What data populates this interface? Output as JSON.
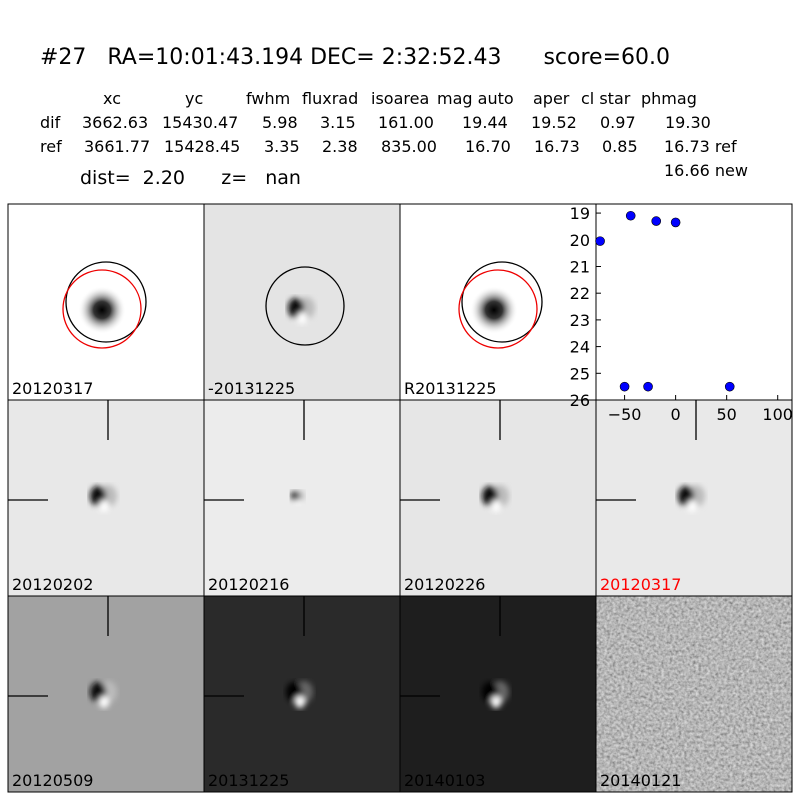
{
  "header": {
    "title": "#27   RA=10:01:43.194 DEC= 2:32:52.43      score=60.0"
  },
  "table": {
    "columns": [
      "xc",
      "yc",
      "fwhm",
      "fluxrad",
      "isoarea",
      "mag auto",
      "aper",
      "cl star",
      "phmag"
    ],
    "rows": [
      [
        "dif",
        "3662.63",
        "15430.47",
        "5.98",
        "3.15",
        "161.00",
        "19.44",
        "19.52",
        "0.97",
        "19.30"
      ],
      [
        "ref",
        "3661.77",
        "15428.45",
        "3.35",
        "2.38",
        "835.00",
        "16.70",
        "16.73",
        "0.85",
        "16.73 ref"
      ]
    ],
    "extra": "16.66 new",
    "dist_line": "dist=  2.20      z=   nan"
  },
  "panels": [
    {
      "label": "20120317",
      "label_color": "#000000"
    },
    {
      "label": "-20131225",
      "label_color": "#000000"
    },
    {
      "label": "R20131225",
      "label_color": "#000000"
    },
    {
      "label": "20120202",
      "label_color": "#000000"
    },
    {
      "label": "20120216",
      "label_color": "#000000"
    },
    {
      "label": "20120226",
      "label_color": "#000000"
    },
    {
      "label": "20120317",
      "label_color": "#ff0000"
    },
    {
      "label": "20120509",
      "label_color": "#000000"
    },
    {
      "label": "20131225",
      "label_color": "#000000"
    },
    {
      "label": "20140103",
      "label_color": "#000000"
    },
    {
      "label": "20140121",
      "label_color": "#000000"
    }
  ],
  "chart_data": {
    "type": "scatter",
    "x": [
      -74,
      -44,
      -19,
      0,
      -50,
      -27,
      53
    ],
    "values": [
      20.05,
      19.1,
      19.3,
      19.35,
      25.5,
      25.5,
      25.5
    ],
    "color": "#0000ff",
    "xlim": [
      -78,
      114
    ],
    "ylim": [
      26,
      18.66
    ],
    "xticks": [
      {
        "value": -50,
        "label": "−50"
      },
      0,
      50,
      100
    ],
    "yticks": [
      19,
      20,
      21,
      22,
      23,
      24,
      25,
      26
    ]
  }
}
